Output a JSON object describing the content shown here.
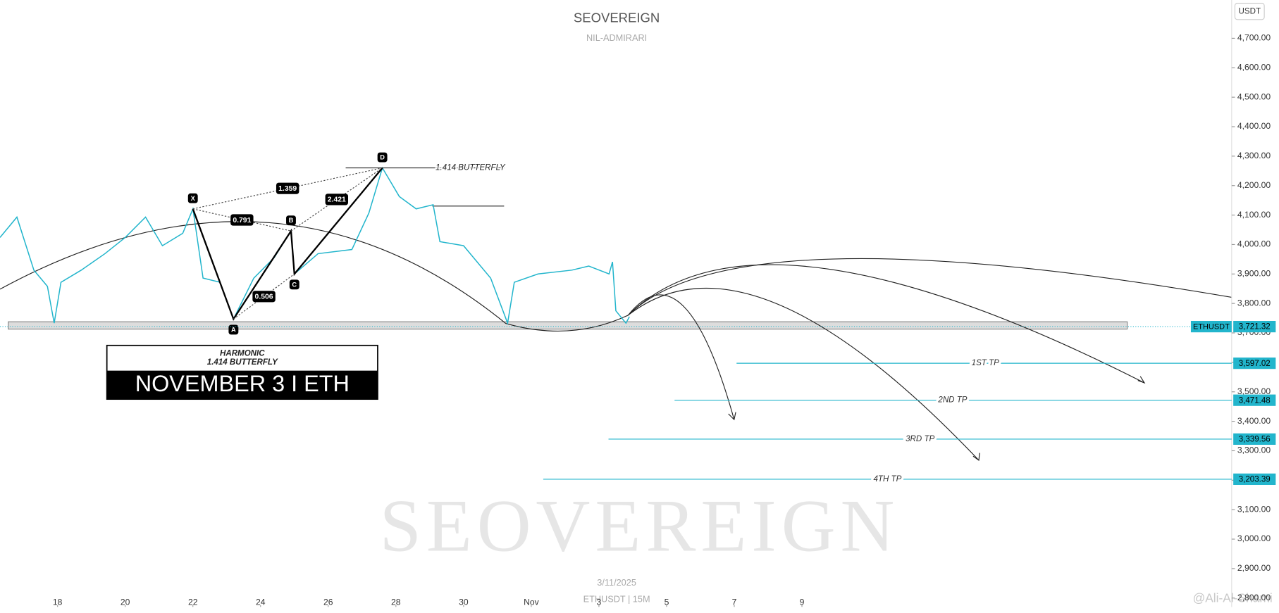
{
  "chart_data": {
    "type": "line",
    "title": "SEOVEREIGN",
    "subtitle": "NIL-ADMIRARI",
    "watermark": "SEOVEREIGN",
    "date_label": "3/11/2025",
    "interval_label": "ETHUSDT | 15M",
    "currency": "USDT",
    "credit": "@Ali-Al-Shami",
    "x": [
      16.3,
      16.8,
      17.3,
      17.7,
      17.9,
      18.1,
      18.7,
      19.4,
      20.0,
      20.6,
      21.1,
      21.7,
      22.0,
      22.3,
      22.8,
      23.2,
      23.8,
      24.4,
      24.9,
      25.0,
      25.7,
      26.7,
      27.2,
      27.6,
      28.1,
      28.6,
      29.1,
      29.3,
      30.0,
      30.8,
      31.3,
      31.5,
      32.2,
      33.2,
      33.7,
      34.3,
      34.4,
      34.5,
      34.8,
      34.9
    ],
    "series": [
      {
        "name": "ETHUSDT",
        "color": "#22b5cc",
        "values": [
          4024,
          4093,
          3913,
          3858,
          3733,
          3872,
          3913,
          3969,
          4024,
          4093,
          3996,
          4038,
          4121,
          3886,
          3872,
          3747,
          3886,
          3955,
          4046,
          3900,
          3969,
          3983,
          4107,
          4260,
          4163,
          4121,
          4135,
          4010,
          3996,
          3886,
          3733,
          3872,
          3900,
          3913,
          3927,
          3900,
          3941,
          3775,
          3733,
          3755
        ]
      }
    ],
    "xlim": [
      16.3,
      52.7
    ],
    "xticks": [
      18,
      20,
      22,
      24,
      26,
      28,
      30,
      {
        "value": 32,
        "label": "Nov"
      },
      {
        "value": 34,
        "label": "3"
      },
      {
        "value": 36,
        "label": "5"
      },
      {
        "value": 38,
        "label": "7"
      },
      {
        "value": 40,
        "label": "9"
      }
    ],
    "ylim": [
      2770,
      4830
    ],
    "yticks": [
      {
        "value": 2800,
        "label": "2,800.00"
      },
      {
        "value": 2900,
        "label": "2,900.00"
      },
      {
        "value": 3000,
        "label": "3,000.00"
      },
      {
        "value": 3100,
        "label": "3,100.00"
      },
      {
        "value": 3200,
        "label": "3,200.00"
      },
      {
        "value": 3300,
        "label": "3,300.00"
      },
      {
        "value": 3400,
        "label": "3,400.00"
      },
      {
        "value": 3500,
        "label": "3,500.00"
      },
      {
        "value": 3600,
        "label": "3,600.00"
      },
      {
        "value": 3700,
        "label": "3,700.00"
      },
      {
        "value": 3800,
        "label": "3,800.00"
      },
      {
        "value": 3900,
        "label": "3,900.00"
      },
      {
        "value": 4000,
        "label": "4,000.00"
      },
      {
        "value": 4100,
        "label": "4,100.00"
      },
      {
        "value": 4200,
        "label": "4,200.00"
      },
      {
        "value": 4300,
        "label": "4,300.00"
      },
      {
        "value": 4400,
        "label": "4,400.00"
      },
      {
        "value": 4500,
        "label": "4,500.00"
      },
      {
        "value": 4600,
        "label": "4,600.00"
      },
      {
        "value": 4700,
        "label": "4,700.00"
      }
    ],
    "last_price": {
      "value": 3721.32,
      "label": "3,721.32"
    },
    "pattern": {
      "name": "1.414 BUTTERFLY",
      "points": [
        {
          "label": "X",
          "x": 22.0,
          "y": 4121
        },
        {
          "label": "A",
          "x": 23.2,
          "y": 3747
        },
        {
          "label": "B",
          "x": 24.9,
          "y": 4046
        },
        {
          "label": "C",
          "x": 25.0,
          "y": 3900
        },
        {
          "label": "D",
          "x": 27.6,
          "y": 4260
        }
      ],
      "ratios": [
        "1.359",
        "0.791",
        "0.506",
        "2.421"
      ]
    },
    "tp_levels": [
      {
        "name": "1ST TP",
        "value": 3597.02,
        "label": "3,597.02"
      },
      {
        "name": "2ND TP",
        "value": 3471.48,
        "label": "3,471.48"
      },
      {
        "name": "3RD TP",
        "value": 3339.56,
        "label": "3,339.56"
      },
      {
        "name": "4TH TP",
        "value": 3203.39,
        "label": "3,203.39"
      }
    ],
    "info_box": {
      "heading": "HARMONIC",
      "subheading": "1.414 BUTTERFLY",
      "title": "NOVEMBER 3 I ETH"
    }
  }
}
